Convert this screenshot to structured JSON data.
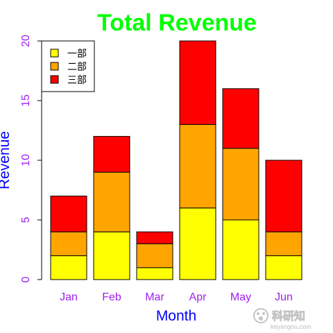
{
  "chart_data": {
    "type": "bar",
    "stacked": true,
    "title": "Total Revenue",
    "xlabel": "Month",
    "ylabel": "Revenue",
    "categories": [
      "Jan",
      "Feb",
      "Mar",
      "Apr",
      "May",
      "Jun"
    ],
    "series": [
      {
        "name": "一部",
        "values": [
          2,
          4,
          1,
          6,
          5,
          2
        ],
        "color": "#ffff00"
      },
      {
        "name": "二部",
        "values": [
          2,
          5,
          2,
          7,
          6,
          2
        ],
        "color": "#ffa500"
      },
      {
        "name": "三部",
        "values": [
          3,
          3,
          1,
          7,
          5,
          6
        ],
        "color": "#ff0000"
      }
    ],
    "ylim": [
      0,
      20
    ],
    "yticks": [
      0,
      5,
      10,
      15,
      20
    ],
    "grid": false,
    "legend_position": "top-left",
    "colors": {
      "title": "#00ff00",
      "axis_title": "#0000ff",
      "tick_labels": "#a020f0",
      "bar_border": "#000000"
    }
  },
  "watermark": {
    "text": "科研知",
    "subtext": "keyangou.com",
    "icon": "paw-icon"
  }
}
